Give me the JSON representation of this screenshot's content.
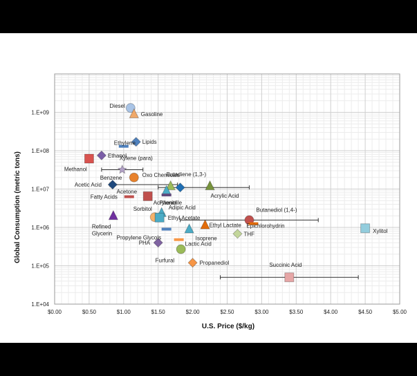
{
  "chart_data": {
    "type": "scatter",
    "xlabel": "U.S. Price ($/kg)",
    "ylabel": "Global Consumption (metric tons)",
    "xlim": [
      0,
      5
    ],
    "ylim": [
      10000,
      10000000000
    ],
    "y_scale": "log",
    "x_ticks": [
      "$0.00",
      "$0.50",
      "$1.00",
      "$1.50",
      "$2.00",
      "$2.50",
      "$3.00",
      "$3.50",
      "$4.00",
      "$4.50",
      "$5.00"
    ],
    "y_ticks": [
      "1.E+04",
      "1.E+05",
      "1.E+06",
      "1.E+07",
      "1.E+08",
      "1.E+09"
    ],
    "grid": true,
    "points": [
      {
        "label": "Diesel",
        "x": 1.1,
        "y": 1300000000,
        "marker": "circle",
        "color": "#a9c4e6"
      },
      {
        "label": "Gasoline",
        "x": 1.15,
        "y": 900000000,
        "marker": "triangle",
        "color": "#f0a868"
      },
      {
        "label": "Lipids",
        "x": 1.18,
        "y": 170000000,
        "marker": "diamond",
        "color": "#4f81bd"
      },
      {
        "label": "Ethylene",
        "x": 1.0,
        "y": 130000000,
        "marker": "dash",
        "color": "#4f81bd"
      },
      {
        "label": "Ethanol",
        "x": 0.68,
        "y": 75000000,
        "marker": "diamond",
        "color": "#7b5ea7"
      },
      {
        "label": "Methanol",
        "x": 0.5,
        "y": 62000000,
        "marker": "square",
        "color": "#d9534f"
      },
      {
        "label": "Xylene (para)",
        "x": 0.98,
        "y": 32000000,
        "marker": "star",
        "color": "#b3a2c7",
        "xerr": [
          0.68,
          1.28
        ]
      },
      {
        "label": "Benzene",
        "x": 1.15,
        "y": 20000000,
        "marker": "circle",
        "color": "#e8822c"
      },
      {
        "label": "Oxo Chemicals",
        "x": 1.68,
        "y": 12000000,
        "marker": "triangle",
        "color": "#9bbb59"
      },
      {
        "label": "Acetic Acid",
        "x": 0.84,
        "y": 13000000,
        "marker": "diamond",
        "color": "#1f497d",
        "xerr": [
          0.8,
          1.78
        ]
      },
      {
        "label": "Butadiene (1,3-)",
        "x": 1.82,
        "y": 11000000,
        "marker": "diamond",
        "color": "#1f6fb4",
        "xerr": [
          1.5,
          2.82
        ]
      },
      {
        "label": "Acrylic Acid",
        "x": 2.25,
        "y": 12000000,
        "marker": "triangle",
        "color": "#77933c"
      },
      {
        "label": "Acetone",
        "x": 1.62,
        "y": 9000000,
        "marker": "triangle",
        "color": "#4bacc6"
      },
      {
        "label": "Phenol",
        "x": 1.62,
        "y": 7000000,
        "marker": "dash",
        "color": "#604a7b"
      },
      {
        "label": "Acrylonitrile",
        "x": 1.35,
        "y": 6500000,
        "marker": "square",
        "color": "#c0504d"
      },
      {
        "label": "Fatty Acids",
        "x": 1.08,
        "y": 6300000,
        "marker": "dash",
        "color": "#c0504d"
      },
      {
        "label": "Adipic Acid",
        "x": 1.55,
        "y": 2400000,
        "marker": "triangle",
        "color": "#4bacc6"
      },
      {
        "label": "Sorbitol",
        "x": 1.45,
        "y": 1850000,
        "marker": "circle",
        "color": "#f6b26b"
      },
      {
        "label": "Ethyl Acetate",
        "x": 1.52,
        "y": 1800000,
        "marker": "square",
        "color": "#4bacc6"
      },
      {
        "label": "Butanediol (1,4-)",
        "x": 2.82,
        "y": 1550000,
        "marker": "circle",
        "color": "#c0504d",
        "xerr": [
          1.82,
          3.82
        ]
      },
      {
        "label": "Refined Glycerin",
        "x": 0.85,
        "y": 2000000,
        "marker": "triangle",
        "color": "#7030a0"
      },
      {
        "label": "Ethyl Lactate",
        "x": 2.18,
        "y": 1150000,
        "marker": "triangle",
        "color": "#e36c09"
      },
      {
        "label": "Epichlorohydrin",
        "x": 2.88,
        "y": 1250000,
        "marker": "dash",
        "color": "#e36c09"
      },
      {
        "label": "Xylitol",
        "x": 4.5,
        "y": 950000,
        "marker": "square",
        "color": "#93cddd"
      },
      {
        "label": "Isoprene",
        "x": 1.95,
        "y": 900000,
        "marker": "triangle",
        "color": "#4bacc6"
      },
      {
        "label": "Propylene Glycols",
        "x": 1.62,
        "y": 900000,
        "marker": "dash",
        "color": "#4f81bd"
      },
      {
        "label": "THF",
        "x": 2.65,
        "y": 680000,
        "marker": "diamond",
        "color": "#c3d69b"
      },
      {
        "label": "PHA",
        "x": 1.5,
        "y": 400000,
        "marker": "diamond",
        "color": "#8064a2"
      },
      {
        "label": "Lactic Acid",
        "x": 1.8,
        "y": 480000,
        "marker": "dash",
        "color": "#f79646"
      },
      {
        "label": "Furfural",
        "x": 1.83,
        "y": 270000,
        "marker": "circle",
        "color": "#9bbb59"
      },
      {
        "label": "Propanediol",
        "x": 2.0,
        "y": 120000,
        "marker": "diamond",
        "color": "#f79646"
      },
      {
        "label": "Succinic Acid",
        "x": 3.4,
        "y": 50000,
        "marker": "square",
        "color": "#e6a6a6",
        "xerr": [
          2.4,
          4.4
        ]
      }
    ]
  }
}
